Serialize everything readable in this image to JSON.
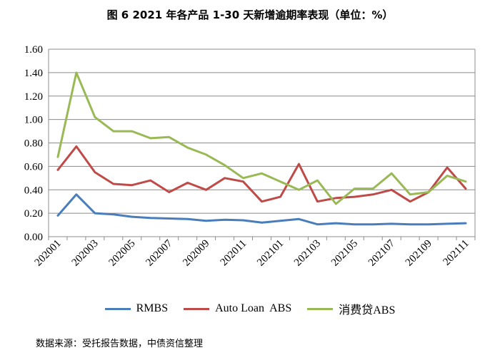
{
  "chart_data": {
    "type": "line",
    "title": "图 6 2021 年各产品 1-30 天新增逾期率表现（单位：%）",
    "xlabel": "",
    "ylabel": "",
    "ylim": [
      0,
      1.6
    ],
    "yticks": [
      "0.00",
      "0.20",
      "0.40",
      "0.60",
      "0.80",
      "1.00",
      "1.20",
      "1.40",
      "1.60"
    ],
    "ytick_values": [
      0,
      0.2,
      0.4,
      0.6,
      0.8,
      1.0,
      1.2,
      1.4,
      1.6
    ],
    "grid": true,
    "categories": [
      "202001",
      "202002",
      "202003",
      "202004",
      "202005",
      "202006",
      "202007",
      "202008",
      "202009",
      "202010",
      "202011",
      "202012",
      "202101",
      "202102",
      "202103",
      "202104",
      "202105",
      "202106",
      "202107",
      "202108",
      "202109",
      "202110",
      "202111"
    ],
    "xtick_labels": [
      "202001",
      "202003",
      "202005",
      "202007",
      "202009",
      "202011",
      "202101",
      "202103",
      "202105",
      "202107",
      "202109",
      "202111"
    ],
    "legend_position": "bottom",
    "series": [
      {
        "name": "RMBS",
        "color": "#4a7ebb",
        "values": [
          0.18,
          0.36,
          0.2,
          0.19,
          0.17,
          0.16,
          0.155,
          0.15,
          0.135,
          0.145,
          0.14,
          0.12,
          0.135,
          0.15,
          0.105,
          0.115,
          0.105,
          0.105,
          0.11,
          0.105,
          0.105,
          0.11,
          0.115
        ]
      },
      {
        "name": "Auto Loan  ABS",
        "color": "#be4b48",
        "values": [
          0.57,
          0.77,
          0.55,
          0.45,
          0.44,
          0.48,
          0.38,
          0.46,
          0.4,
          0.5,
          0.47,
          0.3,
          0.34,
          0.62,
          0.3,
          0.33,
          0.34,
          0.36,
          0.4,
          0.3,
          0.38,
          0.59,
          0.41
        ]
      },
      {
        "name": "消费贷ABS",
        "color": "#98b954",
        "values": [
          0.68,
          1.4,
          1.02,
          0.9,
          0.9,
          0.84,
          0.85,
          0.76,
          0.7,
          0.61,
          0.5,
          0.54,
          0.47,
          0.4,
          0.48,
          0.28,
          0.41,
          0.41,
          0.54,
          0.36,
          0.38,
          0.52,
          0.47
        ]
      }
    ]
  },
  "source_note": "数据来源：受托报告数据，中债资信整理"
}
